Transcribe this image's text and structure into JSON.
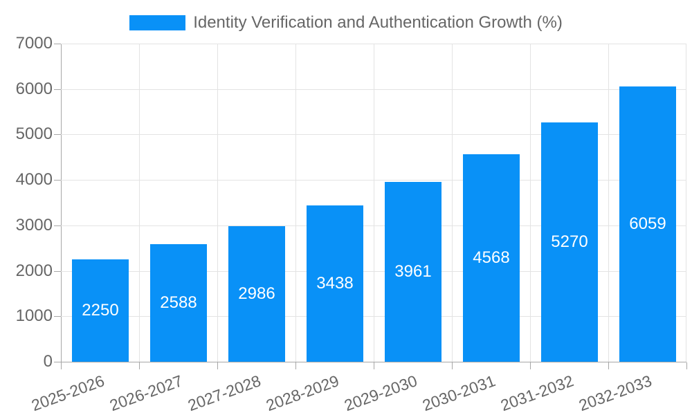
{
  "chart_data": {
    "type": "bar",
    "title": "Identity Verification and Authentication Growth (%)",
    "legend_position": "top",
    "categories": [
      "2025-2026",
      "2026-2027",
      "2027-2028",
      "2028-2029",
      "2029-2030",
      "2030-2031",
      "2031-2032",
      "2032-2033"
    ],
    "values": [
      2250,
      2588,
      2986,
      3438,
      3961,
      4568,
      5270,
      6059
    ],
    "xlabel": "",
    "ylabel": "",
    "ylim": [
      0,
      7000
    ],
    "yticks": [
      0,
      1000,
      2000,
      3000,
      4000,
      5000,
      6000,
      7000
    ],
    "grid": true,
    "value_labels_inside_bars": true,
    "x_label_rotation_deg": -20,
    "colors": {
      "bar": "#0991f7",
      "value_label": "#ffffff",
      "axis_text": "#666666",
      "grid_line": "#e3e3e3",
      "axis_line": "#a6a6a6",
      "background": "#ffffff"
    }
  }
}
